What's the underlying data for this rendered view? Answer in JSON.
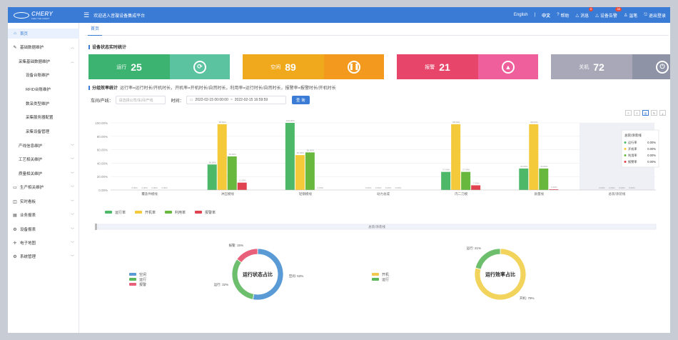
{
  "app": {
    "logo_text": "CHERY",
    "logo_sub": "FEEL THE CHERY",
    "welcome": "欢迎进入音璇设备集成平台"
  },
  "header": {
    "lang_en": "English",
    "lang_zh": "中文",
    "help": "帮助",
    "messages": "消息",
    "messages_count": "0",
    "alarm": "设备告警",
    "alarm_count": "38",
    "user": "温笔",
    "logout": "退出登录"
  },
  "tabs": [
    {
      "label": "首页"
    }
  ],
  "sidebar": {
    "items": [
      {
        "label": "首页",
        "icon": "home-icon",
        "level": 0
      },
      {
        "label": "基础数据维护",
        "icon": "edit-icon",
        "level": 0,
        "arrow": "up"
      },
      {
        "label": "采集基础数据维护",
        "level": 1,
        "arrow": "up"
      },
      {
        "label": "设备台账维护",
        "level": 2
      },
      {
        "label": "RFID台账维护",
        "level": 2
      },
      {
        "label": "数采类型维护",
        "level": 2
      },
      {
        "label": "采集服务器配置",
        "level": 2
      },
      {
        "label": "采集设备管理",
        "level": 2
      },
      {
        "label": "产线信息维护",
        "level": 1,
        "arrow": "down"
      },
      {
        "label": "工艺相关维护",
        "level": 1,
        "arrow": "down"
      },
      {
        "label": "质量相关维护",
        "level": 1,
        "arrow": "down"
      },
      {
        "label": "生产相关维护",
        "icon": "monitor-icon",
        "level": 0,
        "arrow": "down"
      },
      {
        "label": "实时看板",
        "icon": "dashboard-icon",
        "level": 0,
        "arrow": "down"
      },
      {
        "label": "业务报表",
        "icon": "report-icon",
        "level": 0,
        "arrow": "down"
      },
      {
        "label": "设备报表",
        "icon": "device-report-icon",
        "level": 0,
        "arrow": "down"
      },
      {
        "label": "电子地图",
        "icon": "map-icon",
        "level": 0,
        "arrow": "down"
      },
      {
        "label": "系统管理",
        "icon": "settings-icon",
        "level": 0,
        "arrow": "down"
      }
    ]
  },
  "status": {
    "title": "设备状态实时统计",
    "cards": [
      {
        "label": "运行",
        "value": "25",
        "color_left": "#3cb371",
        "color_right": "#5cc3a0",
        "icon": "refresh-icon"
      },
      {
        "label": "空闲",
        "value": "89",
        "color_left": "#f0a81d",
        "color_right": "#f39a1e",
        "icon": "pause-icon"
      },
      {
        "label": "报警",
        "value": "21",
        "color_left": "#e8456a",
        "color_right": "#ef5f9b",
        "icon": "alarm-icon"
      },
      {
        "label": "关机",
        "value": "72",
        "color_left": "#a8a8b8",
        "color_right": "#8e93a6",
        "icon": "power-icon"
      }
    ]
  },
  "efficiency": {
    "title": "分组效率统计",
    "hint": "运行率=运行时长/开机时长，开机率=开机时长/自然时长，利用率=运行时长/自然时长，报警率=报警时长/开机时长"
  },
  "filter": {
    "line_label": "车间/产线：",
    "line_placeholder": "请选择公司/车间/产线",
    "time_label": "时间：",
    "start": "2022-02-15 00:00:00",
    "sep": "~",
    "end": "2022-02-15 16:59:59",
    "query": "查 询"
  },
  "chart_data": {
    "type": "bar",
    "categories": [
      "覆盖件模线",
      "冲压模线",
      "轻钢模线",
      "动力总成",
      "内二刀模",
      "质量线",
      "总装/涂装线"
    ],
    "yticks": [
      "100.00%",
      "80.00%",
      "60.00%",
      "40.00%",
      "20.00%",
      "0.00%"
    ],
    "ylim": [
      0,
      100
    ],
    "series": [
      {
        "name": "运行率",
        "color": "#4cb868",
        "values": [
          0,
          38,
          100,
          0,
          27,
          32,
          0
        ]
      },
      {
        "name": "开机率",
        "color": "#f4c93a",
        "values": [
          0,
          98,
          52,
          0,
          98,
          98,
          0
        ]
      },
      {
        "name": "利用率",
        "color": "#67b83d",
        "values": [
          0,
          50,
          56,
          0,
          27,
          32,
          0
        ]
      },
      {
        "name": "报警率",
        "color": "#e0434f",
        "values": [
          0,
          11,
          0,
          0,
          7,
          1,
          0
        ]
      }
    ],
    "tooltip": {
      "title": "总装/涂装线",
      "rows": [
        {
          "name": "运行率",
          "value": "0.00%"
        },
        {
          "name": "开机率",
          "value": "0.00%"
        },
        {
          "name": "利用率",
          "value": "0.00%"
        },
        {
          "name": "报警率",
          "value": "0.00%"
        }
      ]
    },
    "slider_label": "总装/涂装线"
  },
  "donut1": {
    "title": "运行状态占比",
    "legend": [
      {
        "name": "空闲",
        "color": "#5b9bd5"
      },
      {
        "name": "运行",
        "color": "#5cb85c"
      },
      {
        "name": "报警",
        "color": "#e8607a"
      }
    ],
    "slices": [
      {
        "name": "空闲",
        "value": 53,
        "color": "#5b9bd5",
        "label": "空闲: 53%"
      },
      {
        "name": "运行",
        "value": 32,
        "color": "#6dbf6d",
        "label": "运行: 32%"
      },
      {
        "name": "报警",
        "value": 15,
        "color": "#e8607a",
        "label": "报警: 15%"
      }
    ]
  },
  "donut2": {
    "title": "运行效率占比",
    "legend": [
      {
        "name": "开机",
        "color": "#f2c94c"
      },
      {
        "name": "运行",
        "color": "#5cb85c"
      }
    ],
    "slices": [
      {
        "name": "开机",
        "value": 79,
        "color": "#f2d35c",
        "label": "开机: 79%"
      },
      {
        "name": "运行",
        "value": 21,
        "color": "#6dbf6d",
        "label": "运行: 21%"
      }
    ]
  }
}
